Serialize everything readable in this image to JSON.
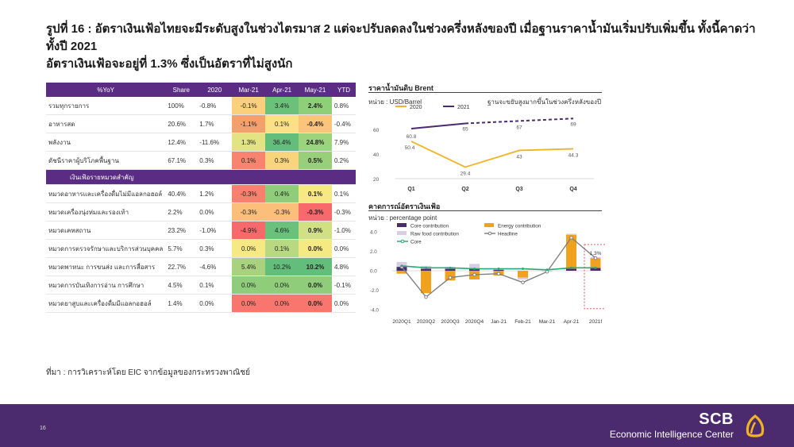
{
  "title": {
    "line1": "รูปที่ 16 : อัตราเงินเฟ้อไทยจะมีระดับสูงในช่วงไตรมาส 2 แต่จะปรับลดลงในช่วงครึ่งหลังของปี เมื่อฐานราคาน้ำมันเริ่มปรับเพิ่มขึ้น ทั้งนี้คาดว่าทั้งปี 2021",
    "line2": "อัตราเงินเฟ้อจะอยู่ที่ 1.3% ซึ่งเป็นอัตราที่ไม่สูงนัก"
  },
  "table": {
    "headers": [
      "%YoY",
      "Share",
      "2020",
      "Mar-21",
      "Apr-21",
      "May-21",
      "YTD"
    ],
    "subheader": "เงินเฟ้อรายหมวดสำคัญ",
    "rows_top": [
      {
        "label": "รวมทุกรายการ",
        "share": "100%",
        "y2020": "-0.8%",
        "mar": "-0.1%",
        "apr": "3.4%",
        "may": "2.4%",
        "ytd": "0.8%",
        "c": [
          "#fbd07c",
          "#6cc17a",
          "#8fcf79"
        ]
      },
      {
        "label": "อาหารสด",
        "share": "20.6%",
        "y2020": "1.7%",
        "mar": "-1.1%",
        "apr": "0.1%",
        "may": "-0.4%",
        "ytd": "-0.4%",
        "c": [
          "#f4a06c",
          "#fde085",
          "#fcc47b"
        ]
      },
      {
        "label": "พลังงาน",
        "share": "12.4%",
        "y2020": "-11.6%",
        "mar": "1.3%",
        "apr": "36.4%",
        "may": "24.8%",
        "ytd": "7.9%",
        "c": [
          "#e2e383",
          "#63be7b",
          "#9bd47d"
        ]
      },
      {
        "label": "ดัชนีราคาผู้บริโภคพื้นฐาน",
        "share": "67.1%",
        "y2020": "0.3%",
        "mar": "0.1%",
        "apr": "0.3%",
        "may": "0.5%",
        "ytd": "0.2%",
        "c": [
          "#f8836f",
          "#f8d47d",
          "#97cf7b"
        ]
      }
    ],
    "rows_bottom": [
      {
        "label": "หมวดอาหารและเครื่องดื่มไม่มีแอลกอฮอล์",
        "share": "40.4%",
        "y2020": "1.2%",
        "mar": "-0.3%",
        "apr": "0.4%",
        "may": "0.1%",
        "ytd": "0.1%",
        "c": [
          "#f8806e",
          "#8fcd7a",
          "#f6e883"
        ]
      },
      {
        "label": "หมวดเครื่องนุ่งห่มและรองเท้า",
        "share": "2.2%",
        "y2020": "0.0%",
        "mar": "-0.3%",
        "apr": "-0.3%",
        "may": "-0.3%",
        "ytd": "-0.3%",
        "c": [
          "#fcbf7b",
          "#fcbf7b",
          "#f8696b"
        ]
      },
      {
        "label": "หมวดเคหสถาน",
        "share": "23.2%",
        "y2020": "-1.0%",
        "mar": "-4.9%",
        "apr": "4.6%",
        "may": "0.9%",
        "ytd": "-1.0%",
        "c": [
          "#f8696b",
          "#6ac17c",
          "#d1e082"
        ]
      },
      {
        "label": "หมวดการตรวจรักษาและบริการส่วนบุคคล",
        "share": "5.7%",
        "y2020": "0.3%",
        "mar": "0.0%",
        "apr": "0.1%",
        "may": "0.0%",
        "ytd": "0.0%",
        "c": [
          "#f6e883",
          "#b8d881",
          "#f6e883"
        ]
      },
      {
        "label": "หมวดพาหนะ การขนส่ง และการสื่อสาร",
        "share": "22.7%",
        "y2020": "-4.6%",
        "mar": "5.4%",
        "apr": "10.2%",
        "may": "10.2%",
        "ytd": "4.8%",
        "c": [
          "#a9d27f",
          "#63be7b",
          "#63be7b"
        ]
      },
      {
        "label": "หมวดการบันเทิงการอ่าน การศึกษา",
        "share": "4.5%",
        "y2020": "0.1%",
        "mar": "0.0%",
        "apr": "0.0%",
        "may": "0.0%",
        "ytd": "-0.1%",
        "c": [
          "#8fcd7a",
          "#8fcd7a",
          "#8fcd7a"
        ]
      },
      {
        "label": "หมวดยาสูบและเครื่องดื่มมีแอลกอฮอล์",
        "share": "1.4%",
        "y2020": "0.0%",
        "mar": "0.0%",
        "apr": "0.0%",
        "may": "0.0%",
        "ytd": "0.0%",
        "c": [
          "#f8766d",
          "#f8766d",
          "#f8766d"
        ]
      }
    ]
  },
  "brent": {
    "title": "ราคาน้ำมันดิบ Brent",
    "unit": "หน่วย : USD/Barrel",
    "note": "ฐานจะขยับสูงมากขึ้นในช่วงครึ่งหลังของปี",
    "legend": [
      "2020",
      "2021"
    ]
  },
  "chart_data": [
    {
      "type": "line",
      "categories": [
        "Q1",
        "Q2",
        "Q3",
        "Q4"
      ],
      "series": [
        {
          "name": "2020",
          "values": [
            50.4,
            29.4,
            43,
            44.3
          ],
          "color": "#f0b323"
        },
        {
          "name": "2021",
          "values": [
            60.8,
            65,
            67,
            69
          ],
          "color": "#4b2a6e",
          "note": "Q2-Q4 dashed (forecast)"
        }
      ],
      "yticks": [
        "60",
        "40",
        "20"
      ],
      "ylim": [
        20,
        75
      ]
    },
    {
      "type": "bar",
      "categories": [
        "2020Q1",
        "2020Q2",
        "2020Q3",
        "2020Q4",
        "Jan-21",
        "Feb-21",
        "Mar-21",
        "Apr-21",
        "2021f"
      ],
      "series": [
        {
          "name": "Core contribution",
          "values": [
            0.4,
            0.2,
            0.2,
            0.2,
            0.1,
            0.0,
            0.0,
            0.2,
            0.3
          ],
          "color": "#4b2a6e"
        },
        {
          "name": "Energy contribution",
          "values": [
            -0.3,
            -2.3,
            -1.0,
            -0.9,
            -0.5,
            -0.7,
            0.0,
            3.5,
            1.0
          ],
          "color": "#f0a21e"
        },
        {
          "name": "Raw food contribution",
          "values": [
            0.5,
            0.3,
            0.2,
            0.5,
            0.1,
            -0.2,
            -0.1,
            0.1,
            0.1
          ],
          "color": "#d9cde6"
        },
        {
          "name": "Headline",
          "values": [
            0.4,
            -2.7,
            -0.7,
            -0.4,
            -0.3,
            -1.2,
            -0.1,
            3.4,
            1.3
          ],
          "color": "#808080"
        },
        {
          "name": "Core",
          "values": [
            0.5,
            0.3,
            0.3,
            0.2,
            0.2,
            0.2,
            0.1,
            0.3,
            0.3
          ],
          "color": "#2aa876"
        }
      ],
      "yticks": [
        "4.0",
        "2.0",
        "0.0",
        "-2.0",
        "-4.0"
      ],
      "ylim": [
        -4,
        4
      ],
      "annotation": "1.3%"
    }
  ],
  "inflation": {
    "title": "คาดการณ์อัตราเงินเฟ้อ",
    "unit": "หน่วย : percentage point"
  },
  "source": "ที่มา : การวิเคราะห์โดย EIC จากข้อมูลของกระทรวงพาณิชย์",
  "footer": {
    "page": "16",
    "brand": "SCB",
    "center": "Economic Intelligence Center"
  },
  "colors": {
    "purple": "#5b2c83",
    "footer": "#4b2a6e",
    "gold": "#f0b323"
  }
}
